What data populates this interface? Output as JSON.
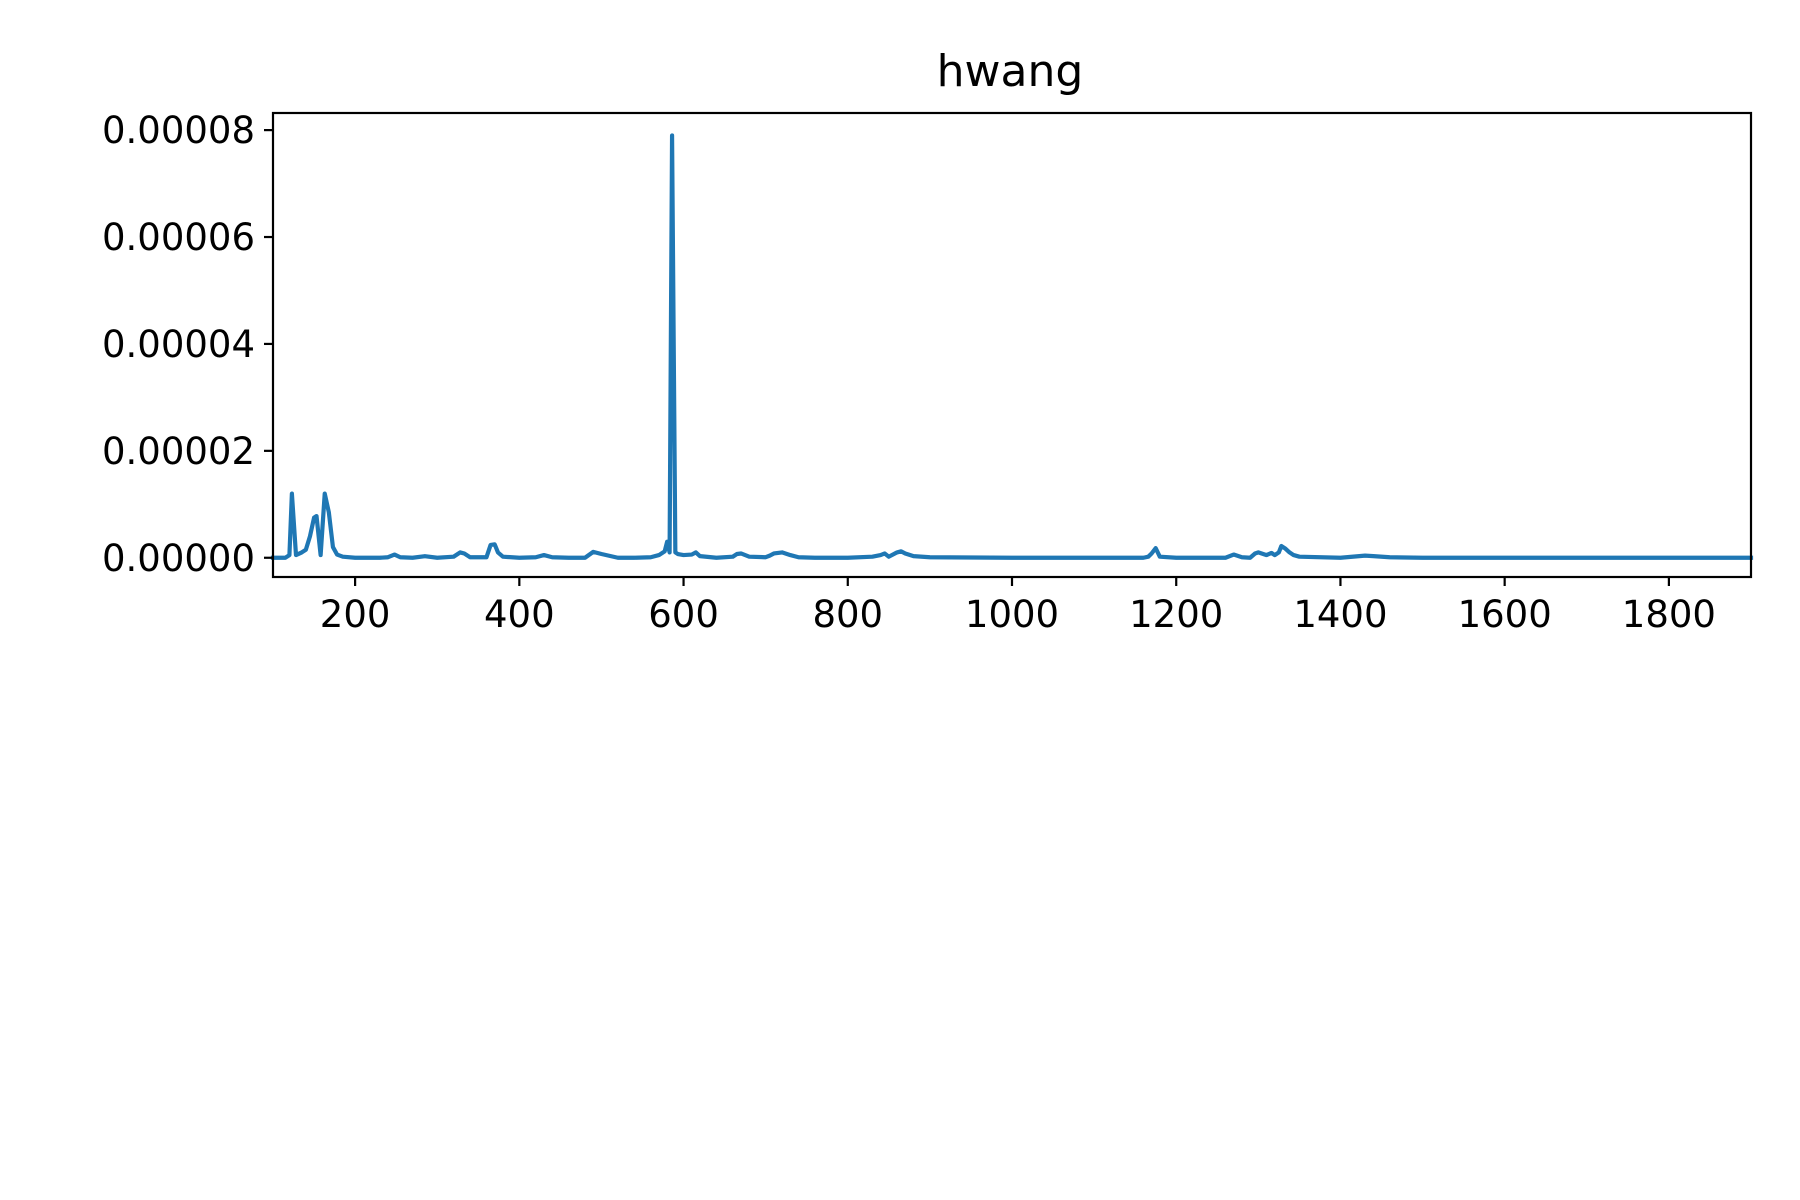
{
  "chart_data": {
    "type": "line",
    "title": "hwang",
    "xlabel": "",
    "ylabel": "",
    "xlim": [
      100,
      1900
    ],
    "ylim": [
      -3.6e-06,
      8.32e-05
    ],
    "grid": false,
    "legend": "none",
    "xticks": [
      200,
      400,
      600,
      800,
      1000,
      1200,
      1400,
      1600,
      1800
    ],
    "xtick_labels": [
      "200",
      "400",
      "600",
      "800",
      "1000",
      "1200",
      "1400",
      "1600",
      "1800"
    ],
    "yticks": [
      0,
      2e-05,
      4e-05,
      6e-05,
      8e-05
    ],
    "ytick_labels": [
      "0.00000",
      "0.00002",
      "0.00004",
      "0.00006",
      "0.00008"
    ],
    "series": [
      {
        "name": "hwang",
        "color": "#1f77b4",
        "x": [
          100,
          115,
          120,
          123,
          128,
          135,
          140,
          145,
          150,
          153,
          158,
          163,
          168,
          173,
          178,
          185,
          200,
          230,
          240,
          248,
          255,
          270,
          285,
          300,
          320,
          328,
          333,
          340,
          360,
          365,
          370,
          374,
          380,
          400,
          420,
          430,
          440,
          460,
          480,
          490,
          500,
          520,
          540,
          560,
          570,
          577,
          580,
          583,
          586,
          590,
          593,
          600,
          610,
          615,
          620,
          640,
          660,
          665,
          670,
          680,
          700,
          705,
          710,
          720,
          730,
          740,
          760,
          800,
          830,
          840,
          845,
          850,
          860,
          865,
          870,
          880,
          900,
          1000,
          1100,
          1160,
          1166,
          1170,
          1175,
          1180,
          1200,
          1260,
          1270,
          1280,
          1290,
          1296,
          1300,
          1310,
          1316,
          1320,
          1325,
          1328,
          1333,
          1338,
          1343,
          1350,
          1400,
          1430,
          1440,
          1460,
          1500,
          1600,
          1700,
          1800,
          1900
        ],
        "values": [
          0,
          0,
          5e-07,
          1.2e-05,
          5e-07,
          1e-06,
          1.5e-06,
          4e-06,
          7.5e-06,
          7.8e-06,
          5e-07,
          1.2e-05,
          8.5e-06,
          2e-06,
          6e-07,
          2e-07,
          0,
          0,
          1e-07,
          6e-07,
          1e-07,
          0,
          3e-07,
          0,
          2e-07,
          1e-06,
          8e-07,
          1e-07,
          1e-07,
          2.4e-06,
          2.5e-06,
          1e-06,
          2e-07,
          0,
          1e-07,
          5e-07,
          1e-07,
          0,
          0,
          1.1e-06,
          7e-07,
          0,
          0,
          1e-07,
          5e-07,
          1.2e-06,
          3e-06,
          1e-06,
          7.9e-05,
          1e-06,
          7e-07,
          5e-07,
          6e-07,
          1e-06,
          3e-07,
          0,
          2e-07,
          7e-07,
          8e-07,
          2e-07,
          1e-07,
          4e-07,
          8e-07,
          1e-06,
          5e-07,
          1e-07,
          0,
          0,
          2e-07,
          5e-07,
          8e-07,
          2e-07,
          1e-06,
          1.2e-06,
          8e-07,
          3e-07,
          1e-07,
          0,
          0,
          0,
          2e-07,
          8e-07,
          1.8e-06,
          2e-07,
          0,
          0,
          6e-07,
          1e-07,
          0,
          8e-07,
          1e-06,
          5e-07,
          9e-07,
          5e-07,
          1e-06,
          2.2e-06,
          1.7e-06,
          1e-06,
          5e-07,
          2e-07,
          0,
          4e-07,
          3e-07,
          1e-07,
          0,
          0,
          0,
          0,
          0
        ]
      }
    ]
  }
}
